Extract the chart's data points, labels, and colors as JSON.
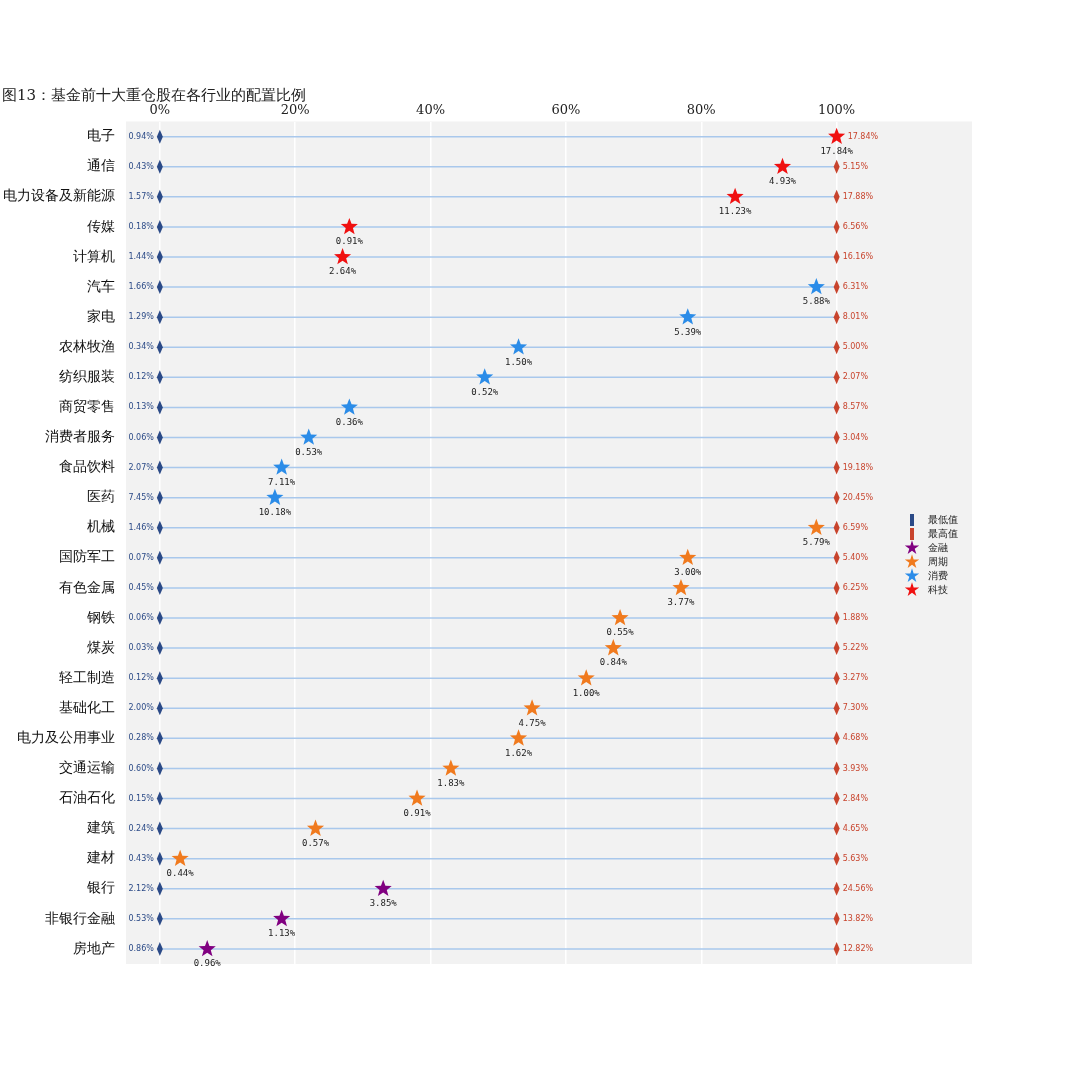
{
  "chart_data": {
    "type": "scatter",
    "title": "图13：基金前十大重仓股在各行业的配置比例",
    "orientation": "horizontal",
    "categories": [
      "电子",
      "通信",
      "电力设备及新能源",
      "传媒",
      "计算机",
      "汽车",
      "家电",
      "农林牧渔",
      "纺织服装",
      "商贸零售",
      "消费者服务",
      "食品饮料",
      "医药",
      "机械",
      "国防军工",
      "有色金属",
      "钢铁",
      "煤炭",
      "轻工制造",
      "基础化工",
      "电力及公用事业",
      "交通运输",
      "石油石化",
      "建筑",
      "建材",
      "银行",
      "非银行金融",
      "房地产"
    ],
    "xlim": [
      -5,
      120
    ],
    "xticks": [
      {
        "value": 0,
        "label": "0%"
      },
      {
        "value": 20,
        "label": "20%"
      },
      {
        "value": 40,
        "label": "40%"
      },
      {
        "value": 60,
        "label": "60%"
      },
      {
        "value": 80,
        "label": "80%"
      },
      {
        "value": 100,
        "label": "100%"
      }
    ],
    "grid": true,
    "legend": "right",
    "series": [
      {
        "name": "最低值",
        "color": "#2b4a87",
        "marker": "diamond",
        "values": [
          0,
          0,
          0,
          0,
          0,
          0,
          0,
          0,
          0,
          0,
          0,
          0,
          0,
          0,
          0,
          0,
          0,
          0,
          0,
          0,
          0,
          0,
          0,
          0,
          0,
          0,
          0,
          0
        ]
      },
      {
        "name": "最高值",
        "color": "#c8442d",
        "marker": "diamond",
        "values": [
          null,
          100,
          100,
          100,
          100,
          100,
          100,
          100,
          100,
          100,
          100,
          100,
          100,
          100,
          100,
          100,
          100,
          100,
          100,
          100,
          100,
          100,
          100,
          100,
          100,
          100,
          100,
          100
        ]
      },
      {
        "name": "金融",
        "color": "#800080",
        "marker": "star",
        "values": [
          null,
          null,
          null,
          null,
          null,
          null,
          null,
          null,
          null,
          null,
          null,
          null,
          null,
          null,
          null,
          null,
          null,
          null,
          null,
          null,
          null,
          null,
          null,
          null,
          null,
          33,
          18,
          7
        ]
      },
      {
        "name": "周期",
        "color": "#f07a1e",
        "marker": "star",
        "values": [
          null,
          null,
          null,
          null,
          null,
          null,
          null,
          null,
          null,
          null,
          null,
          null,
          null,
          97,
          78,
          77,
          68,
          67,
          63,
          55,
          53,
          43,
          38,
          23,
          3,
          null,
          null,
          null
        ]
      },
      {
        "name": "消费",
        "color": "#2b8ce8",
        "marker": "star",
        "values": [
          null,
          null,
          null,
          null,
          null,
          97,
          78,
          53,
          48,
          28,
          22,
          18,
          17,
          null,
          null,
          null,
          null,
          null,
          null,
          null,
          null,
          null,
          null,
          null,
          null,
          null,
          null,
          null
        ]
      },
      {
        "name": "科技",
        "color": "#f01010",
        "marker": "star",
        "values": [
          100,
          92,
          85,
          28,
          27,
          null,
          null,
          null,
          null,
          null,
          null,
          null,
          null,
          null,
          null,
          null,
          null,
          null,
          null,
          null,
          null,
          null,
          null,
          null,
          null,
          null,
          null,
          null
        ]
      }
    ],
    "annotations": [
      {
        "text": "0.94%",
        "x": 0,
        "y": "电子"
      },
      {
        "text": "0.43%",
        "x": 0,
        "y": "通信"
      },
      {
        "text": "1.57%",
        "x": 0,
        "y": "电力设备及新能源"
      },
      {
        "text": "0.18%",
        "x": 0,
        "y": "传媒"
      },
      {
        "text": "1.44%",
        "x": 0,
        "y": "计算机"
      },
      {
        "text": "1.66%",
        "x": 0,
        "y": "汽车"
      },
      {
        "text": "1.29%",
        "x": 0,
        "y": "家电"
      },
      {
        "text": "0.34%",
        "x": 0,
        "y": "农林牧渔"
      },
      {
        "text": "0.12%",
        "x": 0,
        "y": "纺织服装"
      },
      {
        "text": "0.13%",
        "x": 0,
        "y": "商贸零售"
      },
      {
        "text": "0.06%",
        "x": 0,
        "y": "消费者服务"
      },
      {
        "text": "2.07%",
        "x": 0,
        "y": "食品饮料"
      },
      {
        "text": "7.45%",
        "x": 0,
        "y": "医药"
      },
      {
        "text": "1.46%",
        "x": 0,
        "y": "机械"
      },
      {
        "text": "0.07%",
        "x": 0,
        "y": "国防军工"
      },
      {
        "text": "0.45%",
        "x": 0,
        "y": "有色金属"
      },
      {
        "text": "0.06%",
        "x": 0,
        "y": "钢铁"
      },
      {
        "text": "0.03%",
        "x": 0,
        "y": "煤炭"
      },
      {
        "text": "0.12%",
        "x": 0,
        "y": "轻工制造"
      },
      {
        "text": "2.00%",
        "x": 0,
        "y": "基础化工"
      },
      {
        "text": "0.28%",
        "x": 0,
        "y": "电力及公用事业"
      },
      {
        "text": "0.60%",
        "x": 0,
        "y": "交通运输"
      },
      {
        "text": "0.15%",
        "x": 0,
        "y": "石油石化"
      },
      {
        "text": "0.24%",
        "x": 0,
        "y": "建筑"
      },
      {
        "text": "0.43%",
        "x": 0,
        "y": "建材"
      },
      {
        "text": "2.12%",
        "x": 0,
        "y": "银行"
      },
      {
        "text": "0.53%",
        "x": 0,
        "y": "非银行金融"
      },
      {
        "text": "0.86%",
        "x": 0,
        "y": "房地产"
      },
      {
        "text": "17.84%",
        "x": 100,
        "y": "电子"
      },
      {
        "text": "5.15%",
        "x": 100,
        "y": "通信"
      },
      {
        "text": "17.88%",
        "x": 100,
        "y": "电力设备及新能源"
      },
      {
        "text": "6.56%",
        "x": 100,
        "y": "传媒"
      },
      {
        "text": "16.16%",
        "x": 100,
        "y": "计算机"
      },
      {
        "text": "6.31%",
        "x": 100,
        "y": "汽车"
      },
      {
        "text": "8.01%",
        "x": 100,
        "y": "家电"
      },
      {
        "text": "5.00%",
        "x": 100,
        "y": "农林牧渔"
      },
      {
        "text": "2.07%",
        "x": 100,
        "y": "纺织服装"
      },
      {
        "text": "8.57%",
        "x": 100,
        "y": "商贸零售"
      },
      {
        "text": "3.04%",
        "x": 100,
        "y": "消费者服务"
      },
      {
        "text": "19.18%",
        "x": 100,
        "y": "食品饮料"
      },
      {
        "text": "20.45%",
        "x": 100,
        "y": "医药"
      },
      {
        "text": "6.59%",
        "x": 100,
        "y": "机械"
      },
      {
        "text": "5.40%",
        "x": 100,
        "y": "国防军工"
      },
      {
        "text": "6.25%",
        "x": 100,
        "y": "有色金属"
      },
      {
        "text": "1.88%",
        "x": 100,
        "y": "钢铁"
      },
      {
        "text": "5.22%",
        "x": 100,
        "y": "煤炭"
      },
      {
        "text": "3.27%",
        "x": 100,
        "y": "轻工制造"
      },
      {
        "text": "7.30%",
        "x": 100,
        "y": "基础化工"
      },
      {
        "text": "4.68%",
        "x": 100,
        "y": "电力及公用事业"
      },
      {
        "text": "3.93%",
        "x": 100,
        "y": "交通运输"
      },
      {
        "text": "2.84%",
        "x": 100,
        "y": "石油石化"
      },
      {
        "text": "4.65%",
        "x": 100,
        "y": "建筑"
      },
      {
        "text": "5.63%",
        "x": 100,
        "y": "建材"
      },
      {
        "text": "24.56%",
        "x": 100,
        "y": "银行"
      },
      {
        "text": "13.82%",
        "x": 100,
        "y": "非银行金融"
      },
      {
        "text": "12.82%",
        "x": 100,
        "y": "房地产"
      },
      {
        "text": "17.84%",
        "x": 100,
        "y": "电子"
      },
      {
        "text": "4.93%",
        "x": 92,
        "y": "通信"
      },
      {
        "text": "11.23%",
        "x": 85,
        "y": "电力设备及新能源"
      },
      {
        "text": "0.91%",
        "x": 28,
        "y": "传媒"
      },
      {
        "text": "2.64%",
        "x": 27,
        "y": "计算机"
      },
      {
        "text": "5.88%",
        "x": 97,
        "y": "汽车"
      },
      {
        "text": "5.39%",
        "x": 78,
        "y": "家电"
      },
      {
        "text": "1.50%",
        "x": 53,
        "y": "农林牧渔"
      },
      {
        "text": "0.52%",
        "x": 48,
        "y": "纺织服装"
      },
      {
        "text": "0.36%",
        "x": 28,
        "y": "商贸零售"
      },
      {
        "text": "0.53%",
        "x": 22,
        "y": "消费者服务"
      },
      {
        "text": "7.11%",
        "x": 18,
        "y": "食品饮料"
      },
      {
        "text": "10.18%",
        "x": 17,
        "y": "医药"
      },
      {
        "text": "5.79%",
        "x": 97,
        "y": "机械"
      },
      {
        "text": "3.00%",
        "x": 78,
        "y": "国防军工"
      },
      {
        "text": "3.77%",
        "x": 77,
        "y": "有色金属"
      },
      {
        "text": "0.55%",
        "x": 68,
        "y": "钢铁"
      },
      {
        "text": "0.84%",
        "x": 67,
        "y": "煤炭"
      },
      {
        "text": "1.00%",
        "x": 63,
        "y": "轻工制造"
      },
      {
        "text": "4.75%",
        "x": 55,
        "y": "基础化工"
      },
      {
        "text": "1.62%",
        "x": 53,
        "y": "电力及公用事业"
      },
      {
        "text": "1.83%",
        "x": 43,
        "y": "交通运输"
      },
      {
        "text": "0.91%",
        "x": 38,
        "y": "石油石化"
      },
      {
        "text": "0.57%",
        "x": 23,
        "y": "建筑"
      },
      {
        "text": "0.44%",
        "x": 3,
        "y": "建材"
      },
      {
        "text": "3.85%",
        "x": 33,
        "y": "银行"
      },
      {
        "text": "1.13%",
        "x": 18,
        "y": "非银行金融"
      },
      {
        "text": "0.96%",
        "x": 7,
        "y": "房地产"
      }
    ]
  }
}
